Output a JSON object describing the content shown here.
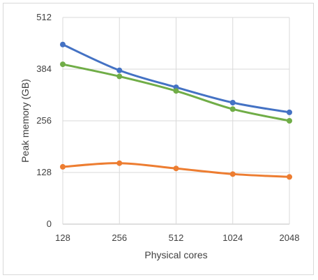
{
  "chart_data": {
    "type": "line",
    "title": "",
    "xlabel": "Physical cores",
    "ylabel": "Peak memory (GB)",
    "categories": [
      "128",
      "256",
      "512",
      "1024",
      "2048"
    ],
    "ylim": [
      0,
      512
    ],
    "yticks": [
      "0",
      "128",
      "256",
      "384",
      "512"
    ],
    "ytick_values": [
      0,
      128,
      256,
      384,
      512
    ],
    "grid": "vertical and horizontal",
    "legend": "none",
    "series": [
      {
        "color": "#4472c4",
        "values": [
          445,
          381,
          339,
          301,
          277
        ]
      },
      {
        "color": "#70ad47",
        "values": [
          396,
          366,
          330,
          285,
          256
        ]
      },
      {
        "color": "#ed7d31",
        "values": [
          142,
          151,
          138,
          124,
          117
        ]
      }
    ]
  }
}
